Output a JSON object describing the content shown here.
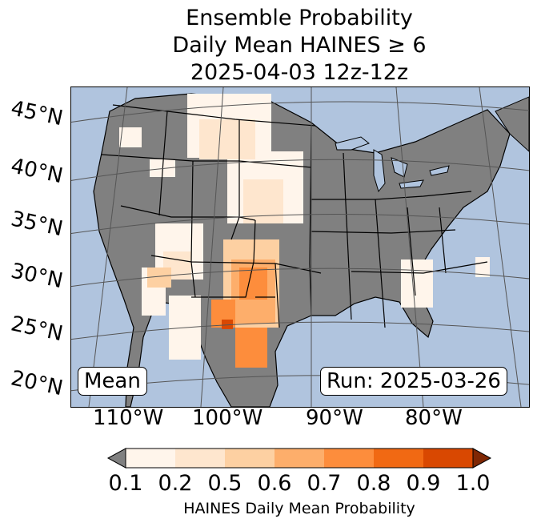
{
  "title": {
    "line1": "Ensemble Probability",
    "line2": "Daily Mean HAINES ≥ 6",
    "line3": "2025-04-03 12z-12z"
  },
  "map": {
    "latitude_labels": [
      "45°N",
      "40°N",
      "35°N",
      "30°N",
      "25°N",
      "20°N"
    ],
    "longitude_labels": [
      "110°W",
      "100°W",
      "90°W",
      "80°W"
    ],
    "left_box": "Mean",
    "right_box": "Run: 2025-03-26",
    "colors": {
      "ocean": "#b0c4de",
      "land_no_data": "#808080",
      "graticule": "#555555"
    }
  },
  "colorbar": {
    "title": "HAINES Daily Mean Probability",
    "tick_labels": [
      "0.1",
      "0.2",
      "0.5",
      "0.6",
      "0.7",
      "0.8",
      "0.9",
      "1.0"
    ],
    "under_color": "#808080",
    "over_color": "#7f2704",
    "bin_colors": [
      "#fff5eb",
      "#fee6ce",
      "#fdd0a2",
      "#fdae6b",
      "#fd8d3c",
      "#f16913",
      "#d94801"
    ]
  }
}
